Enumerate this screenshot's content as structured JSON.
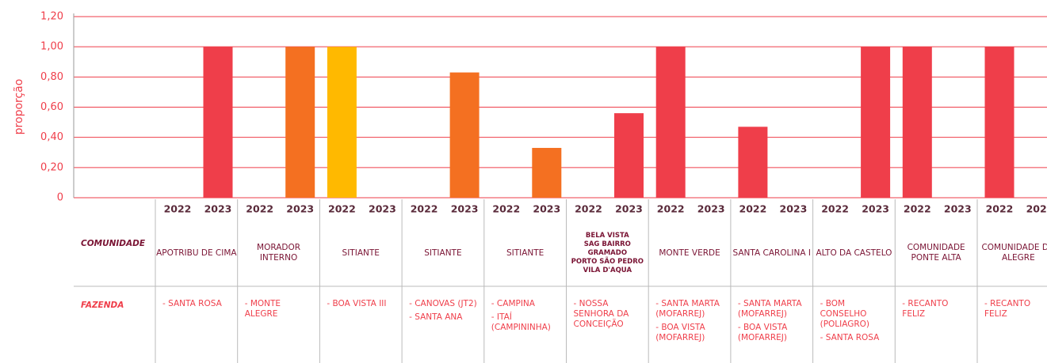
{
  "chart_data": {
    "type": "bar",
    "y_label": "proporção",
    "ylim": [
      0,
      1.2
    ],
    "yticks": [
      0,
      {
        "value": 0.2,
        "label": "0,20"
      },
      {
        "value": 0.4,
        "label": "0,40"
      },
      {
        "value": 0.6,
        "label": "0,60"
      },
      {
        "value": 0.8,
        "label": "0,80"
      },
      {
        "value": 1.0,
        "label": "1,00"
      },
      {
        "value": 1.2,
        "label": "1,20"
      }
    ],
    "grid": true,
    "row_labels": [
      "COMUNIDADE",
      "FAZENDA"
    ],
    "categories": [
      "APOTRIBU DE CIMA",
      "MORADOR INTERNO",
      "SITIANTE",
      "SITIANTE",
      "SITIANTE",
      "BELA VISTA\nSAG BAIRRO\nGRAMADO\nPORTO SÃO PEDRO\nVILA D'AQUA",
      "MONTE VERDE",
      "SANTA CAROLINA I",
      "ALTO DA CASTELO",
      "COMUNIDADE PONTE ALTA",
      "COMUNIDADE DO ALEGRE"
    ],
    "fazendas": [
      [
        "- SANTA ROSA"
      ],
      [
        "- MONTE ALEGRE"
      ],
      [
        "- BOA VISTA III"
      ],
      [
        "- CANOVAS (JT2)",
        "- SANTA ANA"
      ],
      [
        "- CAMPINA",
        "- ITAÍ (CAMPININHA)"
      ],
      [
        "- NOSSA SENHORA DA CONCEIÇÃO"
      ],
      [
        "- SANTA MARTA (MOFARREJ)",
        "- BOA VISTA (MOFARREJ)"
      ],
      [
        "- SANTA MARTA (MOFARREJ)",
        "- BOA VISTA (MOFARREJ)"
      ],
      [
        "- BOM CONSELHO (POLIAGRO)",
        "- SANTA ROSA"
      ],
      [
        "- RECANTO FELIZ"
      ],
      [
        "- RECANTO FELIZ"
      ]
    ],
    "colors": [
      "#ef3e4a",
      "#f47021",
      "#ffb900",
      "#f47021",
      "#f47021",
      "#ef3e4a",
      "#ef3e4a",
      "#ef3e4a",
      "#ef3e4a",
      "#ef3e4a",
      "#ef3e4a"
    ],
    "series": [
      {
        "name": "2022",
        "values": [
          null,
          null,
          1.0,
          null,
          null,
          null,
          1.0,
          0.47,
          null,
          1.0,
          1.0
        ]
      },
      {
        "name": "2023",
        "values": [
          1.0,
          1.0,
          null,
          0.83,
          0.33,
          0.56,
          null,
          null,
          1.0,
          null,
          null
        ]
      }
    ]
  }
}
